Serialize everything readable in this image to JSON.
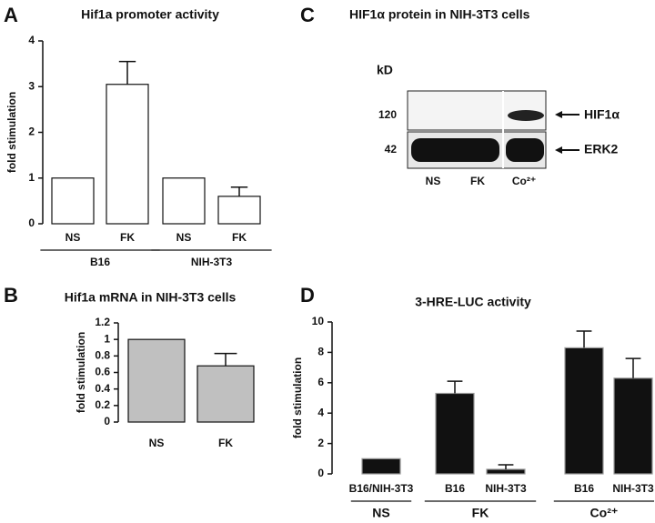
{
  "chart_data": [
    {
      "type": "bar",
      "panel": "A",
      "title": "Hif1a promoter activity",
      "y_label": "fold stimulation",
      "ylim": [
        0,
        4
      ],
      "yticks": [
        0,
        1,
        2,
        3,
        4
      ],
      "color": "#ffffff",
      "groups": [
        {
          "name": "B16",
          "categories": [
            "NS",
            "FK"
          ],
          "values": [
            1.0,
            3.05
          ],
          "errors": [
            0,
            0.5
          ]
        },
        {
          "name": "NIH-3T3",
          "categories": [
            "NS",
            "FK"
          ],
          "values": [
            1.0,
            0.6
          ],
          "errors": [
            0,
            0.2
          ]
        }
      ]
    },
    {
      "type": "bar",
      "panel": "B",
      "title": "Hif1a mRNA in NIH-3T3 cells",
      "y_label": "fold stimulation",
      "ylim": [
        0,
        1.2
      ],
      "yticks": [
        0,
        0.2,
        0.4,
        0.6,
        0.8,
        1,
        1.2
      ],
      "color": "#c0c0c0",
      "groups": [
        {
          "name": null,
          "categories": [
            "NS",
            "FK"
          ],
          "values": [
            1.0,
            0.68
          ],
          "errors": [
            0,
            0.15
          ]
        }
      ]
    },
    {
      "type": "blot",
      "panel": "C",
      "title": "HIF1α protein in NIH-3T3 cells",
      "unit_label": "kD",
      "bands": [
        {
          "size": "120",
          "name": "HIF1α"
        },
        {
          "size": "42",
          "name": "ERK2"
        }
      ],
      "lanes": [
        "NS",
        "FK",
        "Co²⁺"
      ]
    },
    {
      "type": "bar",
      "panel": "D",
      "title": "3-HRE-LUC activity",
      "y_label": "fold stimulation",
      "ylim": [
        0,
        10
      ],
      "yticks": [
        0,
        2,
        4,
        6,
        8,
        10
      ],
      "color": "#111111",
      "groups": [
        {
          "name": "NS",
          "categories": [
            "B16/NIH-3T3"
          ],
          "values": [
            1.0
          ],
          "errors": [
            0
          ]
        },
        {
          "name": "FK",
          "categories": [
            "B16",
            "NIH-3T3"
          ],
          "values": [
            5.3,
            0.3
          ],
          "errors": [
            0.8,
            0.3
          ]
        },
        {
          "name": "Co²⁺",
          "categories": [
            "B16",
            "NIH-3T3"
          ],
          "values": [
            8.3,
            6.3
          ],
          "errors": [
            1.1,
            1.3
          ]
        }
      ]
    }
  ]
}
